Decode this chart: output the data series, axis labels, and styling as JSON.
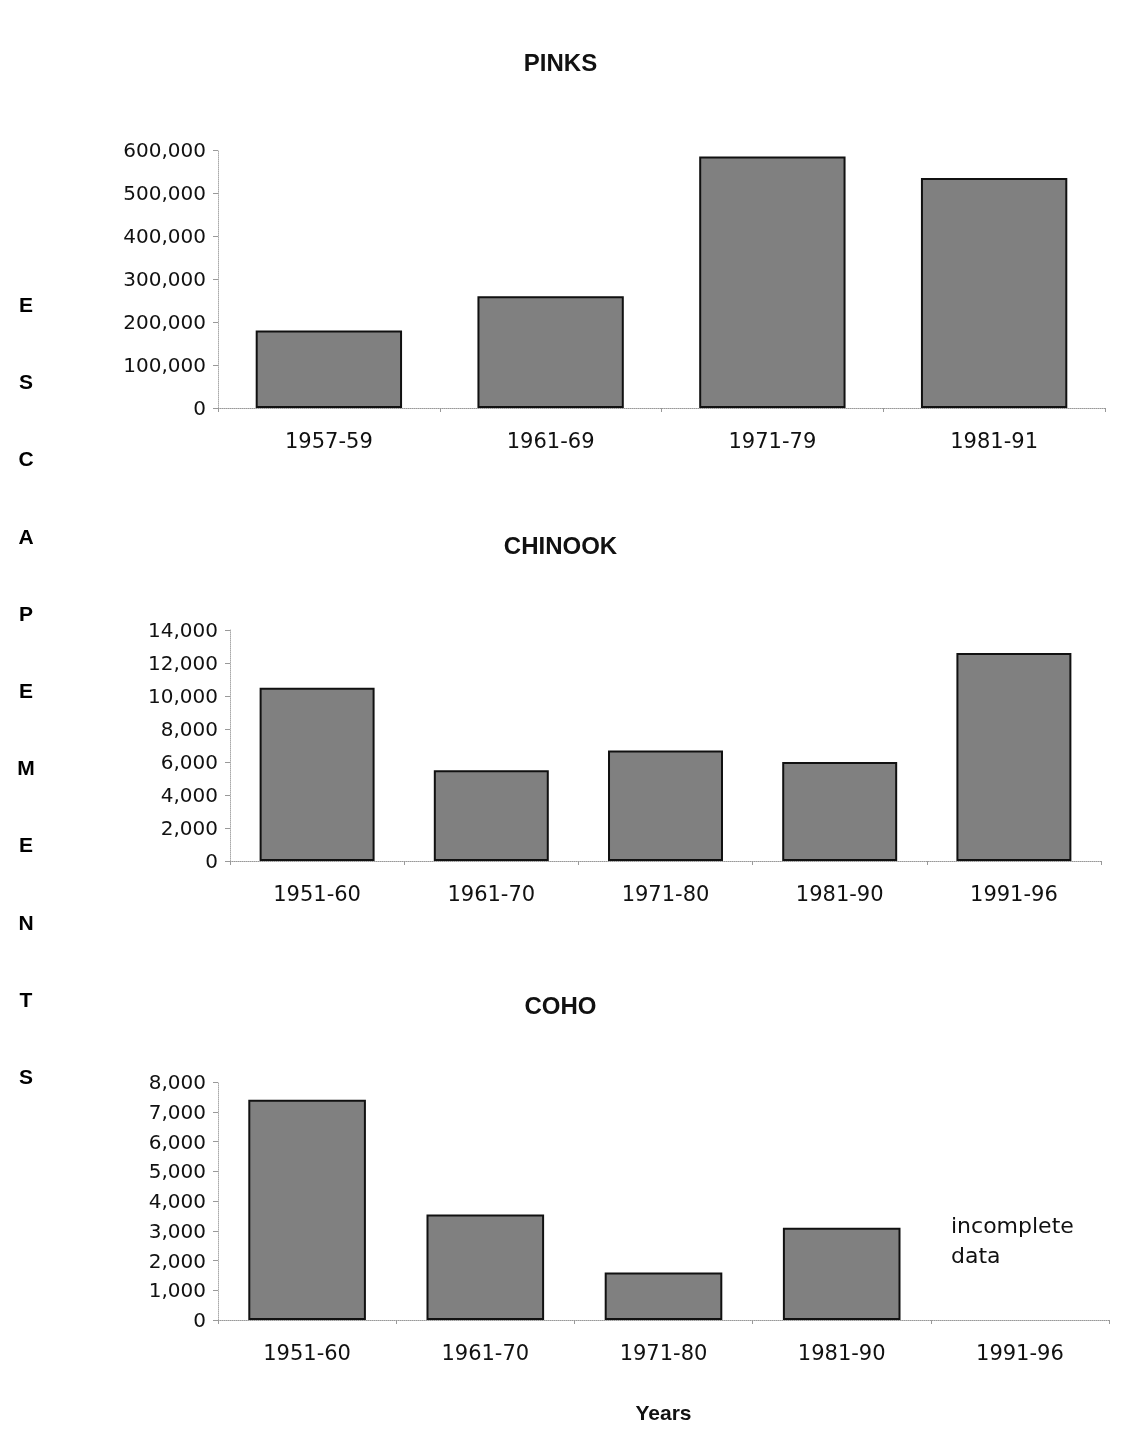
{
  "chart_data": [
    {
      "type": "bar",
      "title": "PINKS",
      "ylabel": "ESCAPEMENTS",
      "categories": [
        "1957-59",
        "1961-69",
        "1971-79",
        "1981-91"
      ],
      "values": [
        180000,
        260000,
        585000,
        535000
      ],
      "color": "#808080",
      "ylim": [
        0,
        600000
      ],
      "yticks": [
        {
          "value": 0,
          "label": "0"
        },
        {
          "value": 100000,
          "label": "100,000"
        },
        {
          "value": 200000,
          "label": "200,000"
        },
        {
          "value": 300000,
          "label": "300,000"
        },
        {
          "value": 400000,
          "label": "400,000"
        },
        {
          "value": 500000,
          "label": "500,000"
        },
        {
          "value": 600000,
          "label": "600,000"
        }
      ]
    },
    {
      "type": "bar",
      "title": "CHINOOK",
      "categories": [
        "1951-60",
        "1961-70",
        "1971-80",
        "1981-90",
        "1991-96"
      ],
      "values": [
        10500,
        5500,
        6700,
        6000,
        12600
      ],
      "color": "#808080",
      "ylim": [
        0,
        14000
      ],
      "yticks": [
        {
          "value": 0,
          "label": "0"
        },
        {
          "value": 2000,
          "label": "2,000"
        },
        {
          "value": 4000,
          "label": "4,000"
        },
        {
          "value": 6000,
          "label": "6,000"
        },
        {
          "value": 8000,
          "label": "8,000"
        },
        {
          "value": 10000,
          "label": "10,000"
        },
        {
          "value": 12000,
          "label": "12,000"
        },
        {
          "value": 14000,
          "label": "14,000"
        }
      ]
    },
    {
      "type": "bar",
      "title": "COHO",
      "xlabel": "Years",
      "categories": [
        "1951-60",
        "1961-70",
        "1971-80",
        "1981-90",
        "1991-96"
      ],
      "values": [
        7400,
        3550,
        1600,
        3100,
        null
      ],
      "color": "#808080",
      "ylim": [
        0,
        8000
      ],
      "yticks": [
        {
          "value": 0,
          "label": "0"
        },
        {
          "value": 1000,
          "label": "1,000"
        },
        {
          "value": 2000,
          "label": "2,000"
        },
        {
          "value": 3000,
          "label": "3,000"
        },
        {
          "value": 4000,
          "label": "4,000"
        },
        {
          "value": 5000,
          "label": "5,000"
        },
        {
          "value": 6000,
          "label": "6,000"
        },
        {
          "value": 7000,
          "label": "7,000"
        },
        {
          "value": 8000,
          "label": "8,000"
        }
      ],
      "annotations": [
        "incomplete data"
      ]
    }
  ]
}
